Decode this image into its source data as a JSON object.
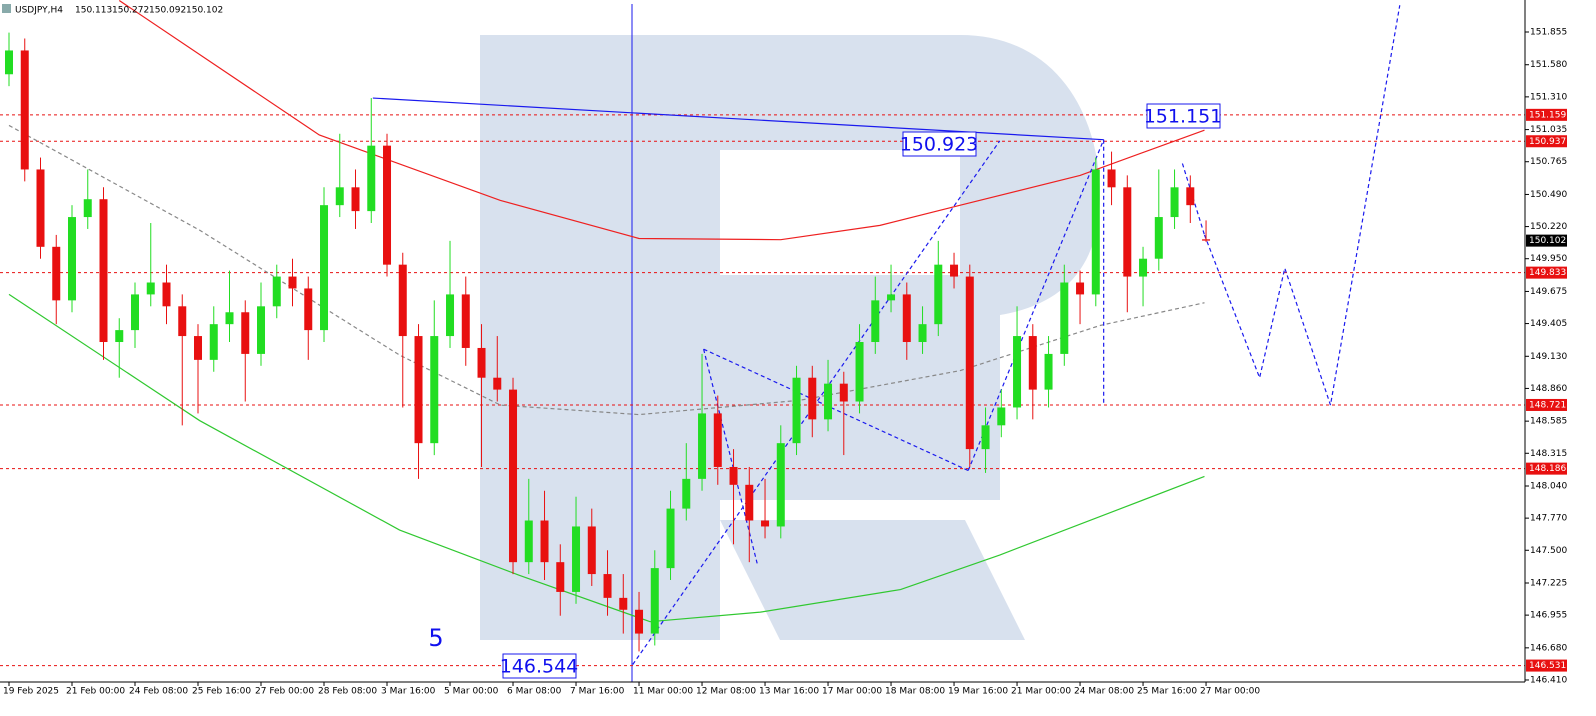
{
  "chart_data": {
    "type": "candlestick",
    "symbol": "USDJPY,H4",
    "ylim": [
      146.393,
      152.124
    ],
    "xlim": [
      -0.5714,
      96.25
    ],
    "up_color": "#22dd22",
    "down_color": "#e81010",
    "yticks": [
      {
        "value": 151.855,
        "label": "151.855"
      },
      {
        "value": 151.58,
        "label": "151.580"
      },
      {
        "value": 151.31,
        "label": "151.310"
      },
      {
        "value": 151.035,
        "label": "151.035"
      },
      {
        "value": 150.765,
        "label": "150.765"
      },
      {
        "value": 150.49,
        "label": "150.490"
      },
      {
        "value": 150.22,
        "label": "150.220"
      },
      {
        "value": 149.95,
        "label": "149.950"
      },
      {
        "value": 149.675,
        "label": "149.675"
      },
      {
        "value": 149.405,
        "label": "149.405"
      },
      {
        "value": 149.13,
        "label": "149.130"
      },
      {
        "value": 148.86,
        "label": "148.860"
      },
      {
        "value": 148.585,
        "label": "148.585"
      },
      {
        "value": 148.315,
        "label": "148.315"
      },
      {
        "value": 148.04,
        "label": "148.040"
      },
      {
        "value": 147.77,
        "label": "147.770"
      },
      {
        "value": 147.5,
        "label": "147.500"
      },
      {
        "value": 147.225,
        "label": "147.225"
      },
      {
        "value": 146.955,
        "label": "146.955"
      },
      {
        "value": 146.68,
        "label": "146.680"
      },
      {
        "value": 146.41,
        "label": "146.410"
      }
    ],
    "x_labels": [
      "19 Feb 2025",
      "21 Feb 00:00",
      "24 Feb 08:00",
      "25 Feb 16:00",
      "27 Feb 00:00",
      "28 Feb 08:00",
      "3 Mar 16:00",
      "5 Mar 00:00",
      "6 Mar 08:00",
      "7 Mar 16:00",
      "11 Mar 00:00",
      "12 Mar 08:00",
      "13 Mar 16:00",
      "17 Mar 00:00",
      "18 Mar 08:00",
      "19 Mar 16:00",
      "21 Mar 00:00",
      "24 Mar 08:00",
      "25 Mar 16:00",
      "27 Mar 00:00"
    ],
    "levels": [
      151.159,
      150.937,
      149.833,
      148.721,
      148.186,
      146.531
    ],
    "level_color": "#e81010",
    "annotations": [
      "151.151",
      "150.923",
      "146.544",
      "5"
    ],
    "candles": [
      [
        151.5,
        151.85,
        151.4,
        151.7
      ],
      [
        151.7,
        151.8,
        150.6,
        150.7
      ],
      [
        150.7,
        150.8,
        149.95,
        150.05
      ],
      [
        150.05,
        150.15,
        149.4,
        149.6
      ],
      [
        149.6,
        150.4,
        149.5,
        150.3
      ],
      [
        150.3,
        150.7,
        150.2,
        150.45
      ],
      [
        150.45,
        150.55,
        149.1,
        149.25
      ],
      [
        149.25,
        149.45,
        148.95,
        149.35
      ],
      [
        149.35,
        149.75,
        149.2,
        149.65
      ],
      [
        149.65,
        150.25,
        149.55,
        149.75
      ],
      [
        149.75,
        149.9,
        149.4,
        149.55
      ],
      [
        149.55,
        149.65,
        148.55,
        149.3
      ],
      [
        149.3,
        149.4,
        148.65,
        149.1
      ],
      [
        149.1,
        149.55,
        149.0,
        149.4
      ],
      [
        149.4,
        149.85,
        149.25,
        149.5
      ],
      [
        149.5,
        149.6,
        148.75,
        149.15
      ],
      [
        149.15,
        149.75,
        149.05,
        149.55
      ],
      [
        149.55,
        149.9,
        149.45,
        149.8
      ],
      [
        149.8,
        149.95,
        149.55,
        149.7
      ],
      [
        149.7,
        149.8,
        149.1,
        149.35
      ],
      [
        149.35,
        150.55,
        149.25,
        150.4
      ],
      [
        150.4,
        151.0,
        150.3,
        150.55
      ],
      [
        150.55,
        150.7,
        150.2,
        150.35
      ],
      [
        150.35,
        151.3,
        150.25,
        150.9
      ],
      [
        150.9,
        151.0,
        149.8,
        149.9
      ],
      [
        149.9,
        150.0,
        148.7,
        149.3
      ],
      [
        149.3,
        149.4,
        148.1,
        148.4
      ],
      [
        148.4,
        149.6,
        148.3,
        149.3
      ],
      [
        149.3,
        150.1,
        149.2,
        149.65
      ],
      [
        149.65,
        149.8,
        149.05,
        149.2
      ],
      [
        149.2,
        149.4,
        148.2,
        148.95
      ],
      [
        148.95,
        149.3,
        148.75,
        148.85
      ],
      [
        148.85,
        148.95,
        147.3,
        147.4
      ],
      [
        147.4,
        148.1,
        147.3,
        147.75
      ],
      [
        147.75,
        148.0,
        147.25,
        147.4
      ],
      [
        147.4,
        147.55,
        146.95,
        147.15
      ],
      [
        147.15,
        147.95,
        147.05,
        147.7
      ],
      [
        147.7,
        147.85,
        147.2,
        147.3
      ],
      [
        147.3,
        147.5,
        146.95,
        147.1
      ],
      [
        147.1,
        147.3,
        146.8,
        147.0
      ],
      [
        147.0,
        147.15,
        146.65,
        146.8
      ],
      [
        146.8,
        147.5,
        146.7,
        147.35
      ],
      [
        147.35,
        148.0,
        147.25,
        147.85
      ],
      [
        147.85,
        148.4,
        147.75,
        148.1
      ],
      [
        148.1,
        149.15,
        148.0,
        148.65
      ],
      [
        148.65,
        148.8,
        148.05,
        148.2
      ],
      [
        148.2,
        148.35,
        147.55,
        148.05
      ],
      [
        148.05,
        148.2,
        147.4,
        147.75
      ],
      [
        147.75,
        148.1,
        147.6,
        147.7
      ],
      [
        147.7,
        148.55,
        147.6,
        148.4
      ],
      [
        148.4,
        149.05,
        148.3,
        148.95
      ],
      [
        148.95,
        149.05,
        148.45,
        148.6
      ],
      [
        148.6,
        149.1,
        148.5,
        148.9
      ],
      [
        148.9,
        149.0,
        148.3,
        148.75
      ],
      [
        148.75,
        149.4,
        148.65,
        149.25
      ],
      [
        149.25,
        149.8,
        149.15,
        149.6
      ],
      [
        149.6,
        149.9,
        149.5,
        149.65
      ],
      [
        149.65,
        149.75,
        149.1,
        149.25
      ],
      [
        149.25,
        149.55,
        149.15,
        149.4
      ],
      [
        149.4,
        150.1,
        149.3,
        149.9
      ],
      [
        149.9,
        150.0,
        149.7,
        149.8
      ],
      [
        149.8,
        149.9,
        148.2,
        148.35
      ],
      [
        148.35,
        148.7,
        148.15,
        148.55
      ],
      [
        148.55,
        148.85,
        148.45,
        148.7
      ],
      [
        148.7,
        149.55,
        148.6,
        149.3
      ],
      [
        149.3,
        149.4,
        148.6,
        148.85
      ],
      [
        148.85,
        149.3,
        148.7,
        149.15
      ],
      [
        149.15,
        149.9,
        149.05,
        149.75
      ],
      [
        149.75,
        149.85,
        149.4,
        149.65
      ],
      [
        149.65,
        150.8,
        149.55,
        150.7
      ],
      [
        150.7,
        150.85,
        150.4,
        150.55
      ],
      [
        150.55,
        150.65,
        149.5,
        149.8
      ],
      [
        149.8,
        150.05,
        149.55,
        149.95
      ],
      [
        149.95,
        150.7,
        149.85,
        150.3
      ],
      [
        150.3,
        150.7,
        150.2,
        150.55
      ],
      [
        150.55,
        150.65,
        150.25,
        150.4
      ],
      [
        150.113,
        150.272,
        150.092,
        150.102
      ]
    ],
    "overlays": [
      {
        "color": "#ee2020",
        "style": "solid",
        "x": [
          7,
          19.7,
          31.2,
          40,
          49,
          55.3,
          60.4,
          68,
          75.9
        ],
        "values": [
          152.12,
          150.99,
          150.44,
          150.12,
          150.11,
          150.23,
          150.4,
          150.65,
          151.03
        ]
      },
      {
        "color": "#30c830",
        "style": "solid",
        "x": [
          0,
          12.1,
          24.8,
          32.4,
          40.7,
          47.7,
          56.6,
          62.9,
          75.9
        ],
        "values": [
          149.65,
          148.59,
          147.67,
          147.29,
          146.9,
          146.98,
          147.17,
          147.46,
          148.12
        ]
      },
      {
        "color": "#888888",
        "style": "dashed",
        "x": [
          0,
          12.1,
          24.8,
          31.2,
          40,
          50.2,
          60.4,
          69.3,
          75.9
        ],
        "values": [
          151.07,
          150.19,
          149.14,
          148.72,
          148.64,
          148.76,
          149.01,
          149.39,
          149.58
        ]
      },
      {
        "color": "#1a1aee",
        "style": "solid",
        "x": [
          23.1,
          69.5
        ],
        "values": [
          151.3,
          150.95
        ]
      },
      {
        "color": "#1a1aee",
        "style": "dashed",
        "x": [
          39.6,
          62.9
        ],
        "values": [
          146.54,
          150.94
        ]
      },
      {
        "color": "#1a1aee",
        "style": "dashed",
        "x": [
          44.1,
          47.5
        ],
        "values": [
          149.19,
          147.39
        ]
      },
      {
        "color": "#1a1aee",
        "style": "dashed",
        "x": [
          44.1,
          60.9
        ],
        "values": [
          149.19,
          148.17
        ]
      },
      {
        "color": "#1a1aee",
        "style": "dashed",
        "x": [
          60.9,
          69.5
        ],
        "values": [
          148.17,
          150.95
        ]
      },
      {
        "color": "#1a1aee",
        "style": "dashed",
        "x": [
          69.5,
          69.5
        ],
        "values": [
          150.95,
          148.73
        ]
      },
      {
        "color": "#1a1aee",
        "style": "dashed",
        "x": [
          74.5,
          75.9
        ],
        "values": [
          150.75,
          150.15
        ]
      },
      {
        "color": "#1a1aee",
        "style": "dashed",
        "x": [
          75.9,
          79.4,
          81,
          83.9,
          88.3
        ],
        "values": [
          150.15,
          148.95,
          149.87,
          148.72,
          152.08
        ]
      }
    ]
  }
}
